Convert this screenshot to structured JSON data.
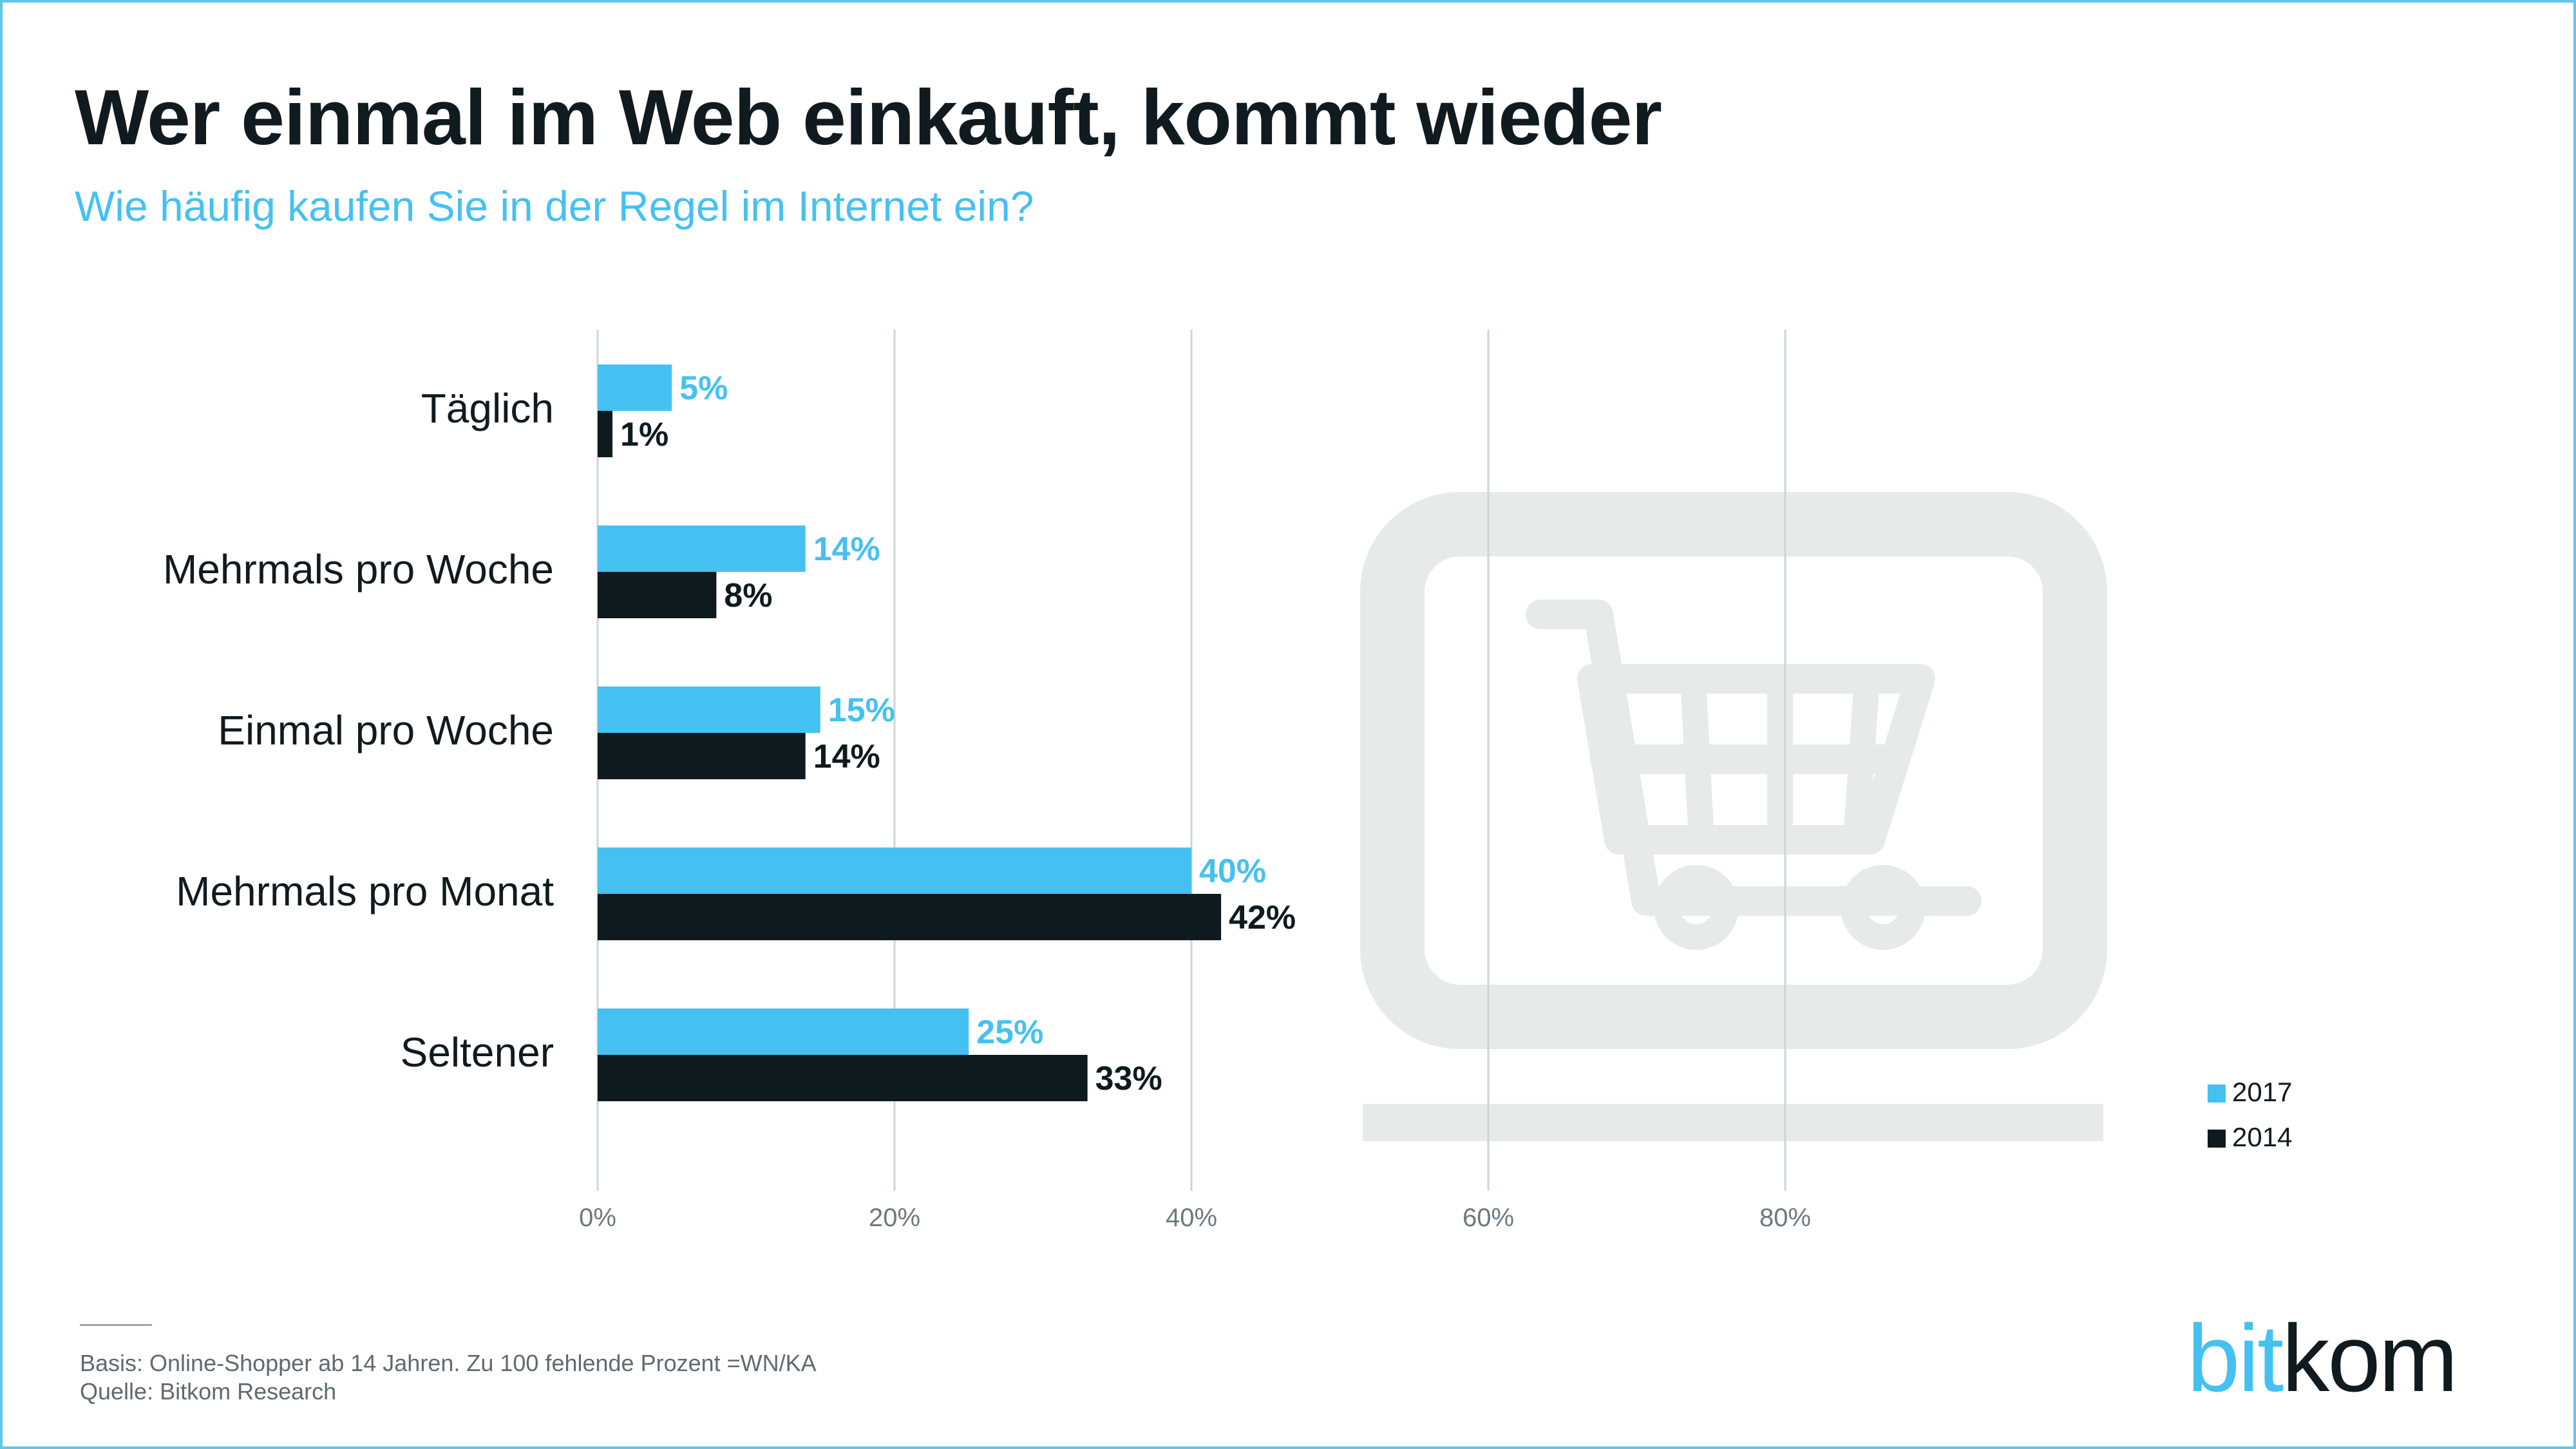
{
  "header": {
    "title": "Wer einmal im Web einkauft, kommt wieder",
    "subtitle": "Wie häufig kaufen Sie in der Regel im Internet ein?"
  },
  "footer": {
    "basis": "Basis: Online-Shopper ab 14 Jahren. Zu 100 fehlende Prozent =WN/KA",
    "source": "Quelle: Bitkom Research"
  },
  "logo": {
    "part1": "bit",
    "part2": "kom"
  },
  "colors": {
    "series_2017": "#45c1f1",
    "series_2014": "#0f1a1f",
    "grid": "#cfd4d6",
    "watermark": "#e6ebe9",
    "frame": "#5fc8e8"
  },
  "icons": {
    "background": "shopping-cart-monitor-icon"
  },
  "chart_data": {
    "type": "bar",
    "orientation": "horizontal",
    "title": "Wer einmal im Web einkauft, kommt wieder",
    "subtitle": "Wie häufig kaufen Sie in der Regel im Internet ein?",
    "categories": [
      "Täglich",
      "Mehrmals pro Woche",
      "Einmal pro Woche",
      "Mehrmals pro Monat",
      "Seltener"
    ],
    "series": [
      {
        "name": "2017",
        "values": [
          5,
          14,
          15,
          40,
          25
        ],
        "labels": [
          "5%",
          "14%",
          "15%",
          "40%",
          "25%"
        ]
      },
      {
        "name": "2014",
        "values": [
          1,
          8,
          14,
          42,
          33
        ],
        "labels": [
          "1%",
          "8%",
          "14%",
          "42%",
          "33%"
        ]
      }
    ],
    "xlim": [
      0,
      100
    ],
    "xticks": [
      0,
      20,
      40,
      60,
      80
    ],
    "xtick_labels": [
      "0%",
      "20%",
      "40%",
      "60%",
      "80%"
    ],
    "grid": true,
    "legend": [
      "2017",
      "2014"
    ],
    "legend_position": "bottom-right",
    "data_labels": true
  }
}
